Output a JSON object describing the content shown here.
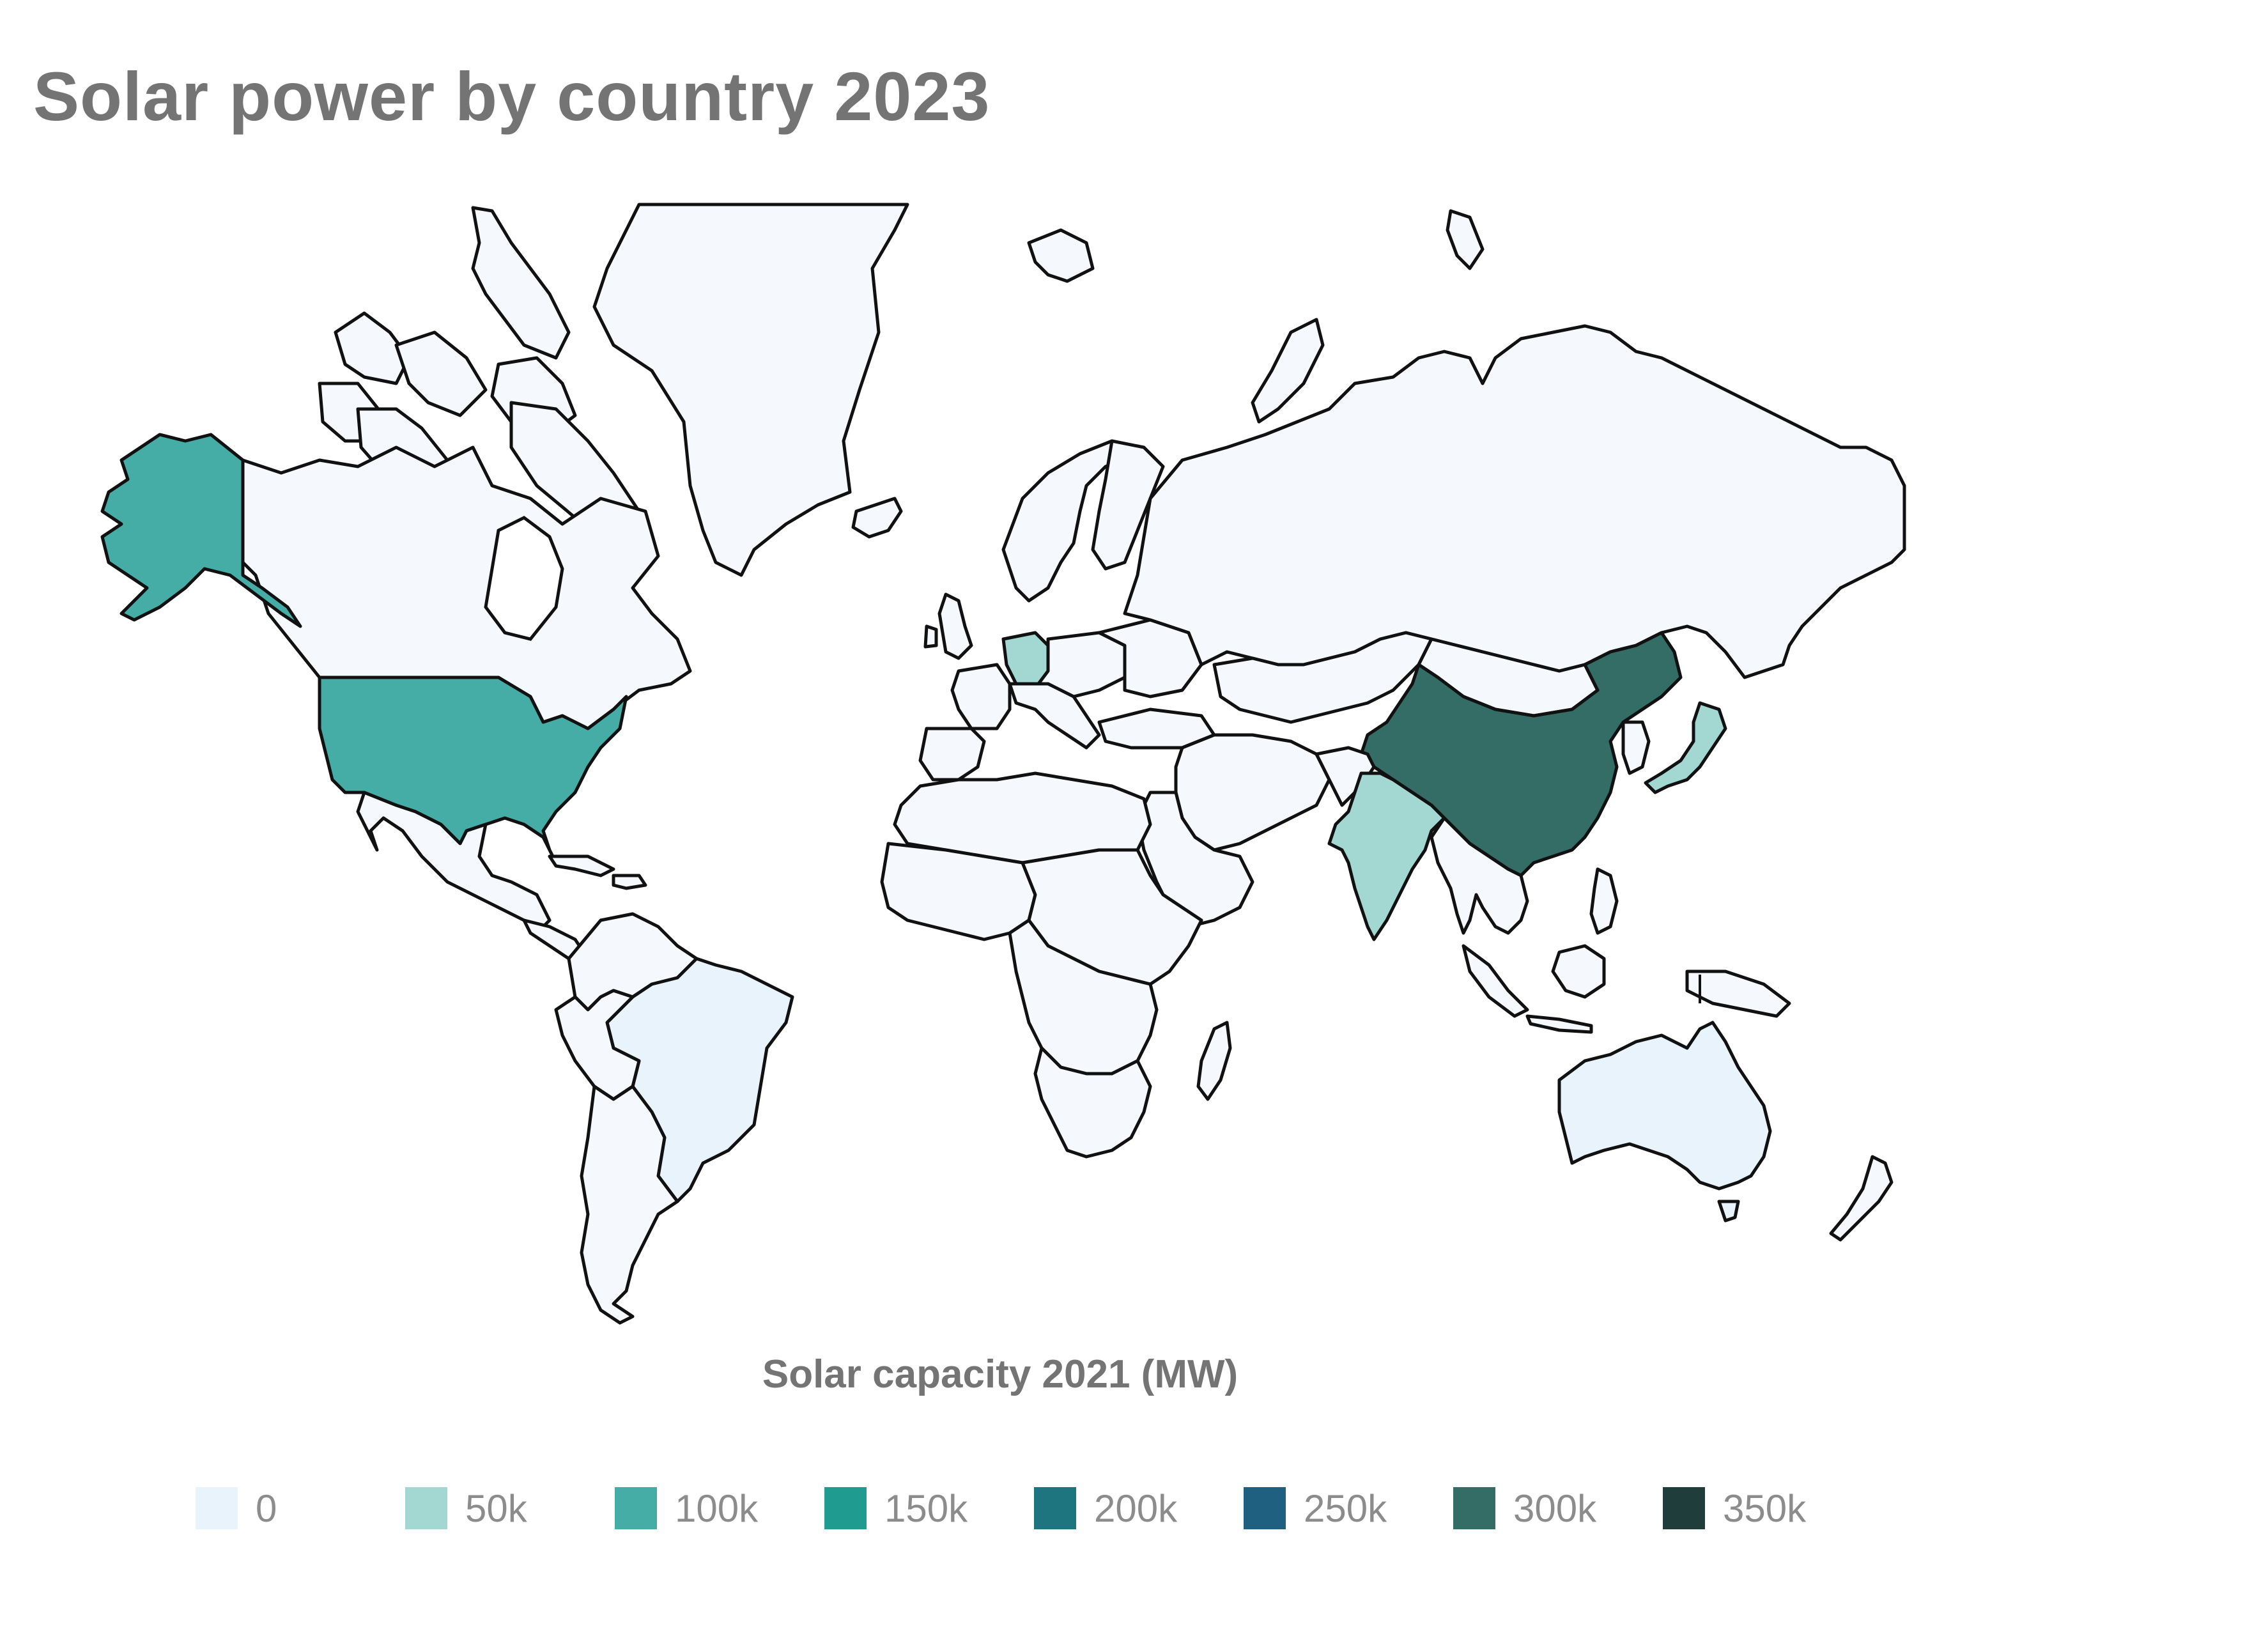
{
  "title": "Solar power by country 2023",
  "legend": {
    "title": "Solar capacity 2021 (MW)",
    "bins": [
      {
        "label": "0",
        "color": "#e8f3fc"
      },
      {
        "label": "50k",
        "color": "#a3d8d2"
      },
      {
        "label": "100k",
        "color": "#46ada6"
      },
      {
        "label": "150k",
        "color": "#209b90"
      },
      {
        "label": "200k",
        "color": "#1e7580"
      },
      {
        "label": "250k",
        "color": "#1f5f80"
      },
      {
        "label": "300k",
        "color": "#346c66"
      },
      {
        "label": "350k",
        "color": "#1f3d3a"
      }
    ]
  },
  "map": {
    "type": "choropleth",
    "default_color": "#f5f9fe",
    "regions": [
      {
        "name": "China",
        "color": "#346c66"
      },
      {
        "name": "United States",
        "color": "#46ada6"
      },
      {
        "name": "Japan",
        "color": "#a3d8d2"
      },
      {
        "name": "Germany",
        "color": "#a3d8d2"
      },
      {
        "name": "India",
        "color": "#a3d8d2"
      },
      {
        "name": "Australia",
        "color": "#e8f3fc"
      },
      {
        "name": "Brazil",
        "color": "#e8f3fc"
      },
      {
        "name": "Canada",
        "color": "#f5f9fe"
      },
      {
        "name": "Russia",
        "color": "#f5f9fe"
      },
      {
        "name": "Greenland",
        "color": "#f5f9fe"
      }
    ]
  }
}
